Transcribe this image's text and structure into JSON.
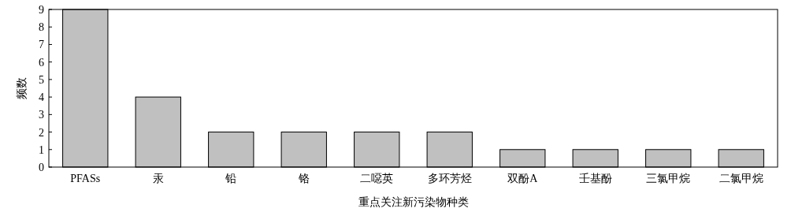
{
  "chart_data": {
    "type": "bar",
    "categories": [
      "PFASs",
      "汞",
      "铅",
      "铬",
      "二噁英",
      "多环芳烃",
      "双酚A",
      "壬基酚",
      "三氯甲烷",
      "二氯甲烷"
    ],
    "values": [
      9,
      4,
      2,
      2,
      2,
      2,
      1,
      1,
      1,
      1
    ],
    "color": "#c0c0c0",
    "xlabel": "重点关注新污染物种类",
    "ylabel": "频数",
    "ylim": [
      0,
      9
    ],
    "yticks": [
      0,
      1,
      2,
      3,
      4,
      5,
      6,
      7,
      8,
      9
    ]
  }
}
